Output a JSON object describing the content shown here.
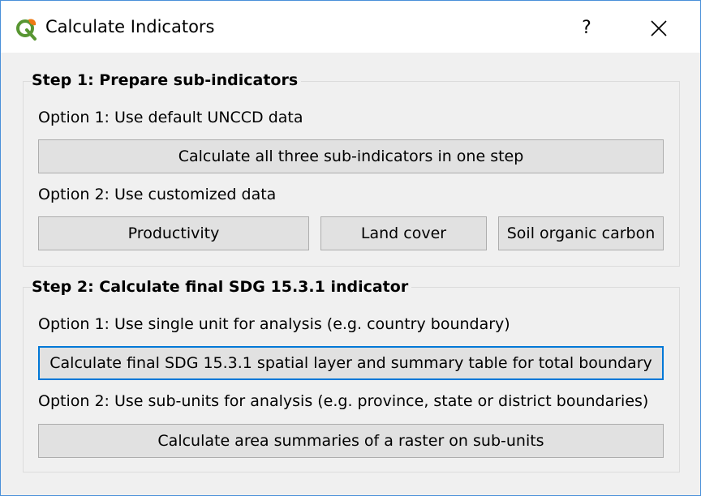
{
  "window": {
    "title": "Calculate Indicators",
    "help_label": "?",
    "accent": "#0078d7"
  },
  "step1": {
    "title": "Step 1: Prepare sub-indicators",
    "option1_label": "Option 1: Use default UNCCD data",
    "calc_all_button": "Calculate all three sub-indicators in one step",
    "option2_label": "Option 2: Use customized data",
    "productivity_button": "Productivity",
    "land_cover_button": "Land cover",
    "soil_carbon_button": "Soil organic carbon"
  },
  "step2": {
    "title": "Step 2: Calculate final SDG 15.3.1 indicator",
    "option1_label": "Option 1: Use single unit for analysis (e.g. country boundary)",
    "calc_final_button": "Calculate final SDG 15.3.1 spatial layer and summary table for total boundary",
    "option2_label": "Option 2: Use sub-units for analysis (e.g. province, state or district boundaries)",
    "calc_area_button": "Calculate area summaries of a raster on sub-units"
  },
  "icons": {
    "app": "qgis-logo-icon",
    "close": "close-icon"
  }
}
